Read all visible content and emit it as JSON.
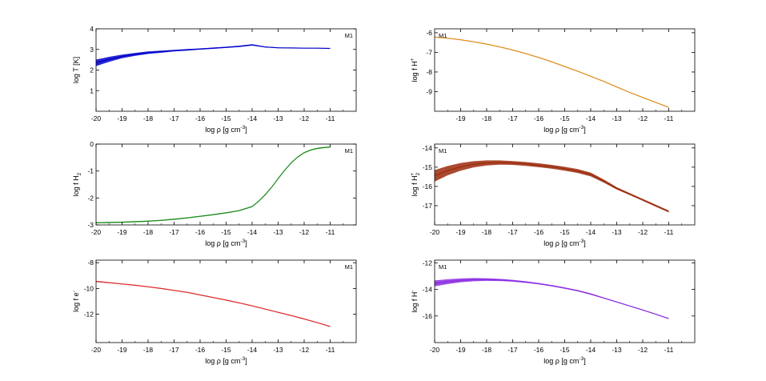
{
  "chart_data": [
    {
      "id": "T",
      "type": "line",
      "ylabel": "log T [K]",
      "ylabel_parts": {
        "base": "log T [K]",
        "sub": "",
        "sup": ""
      },
      "xlabel": "log ρ [g cm",
      "xlabel_sup": "-3",
      "xlabel_close": "]",
      "legend": "M1",
      "legend_position": "top-right",
      "xlim": [
        -20,
        -10
      ],
      "ylim": [
        0,
        4
      ],
      "xticks": [
        -20,
        -19,
        -18,
        -17,
        -16,
        -15,
        -14,
        -13,
        -12,
        -11
      ],
      "yticks": [
        1,
        2,
        3,
        4
      ],
      "color": "#0000cc",
      "x": [
        -20,
        -19.5,
        -19,
        -18.5,
        -18,
        -17.5,
        -17,
        -16.5,
        -16,
        -15.5,
        -15,
        -14.5,
        -14,
        -13.5,
        -13,
        -12.5,
        -12,
        -11.5,
        -11
      ],
      "y": [
        2.35,
        2.52,
        2.66,
        2.76,
        2.84,
        2.89,
        2.94,
        2.98,
        3.02,
        3.06,
        3.1,
        3.15,
        3.22,
        3.12,
        3.08,
        3.07,
        3.06,
        3.06,
        3.05
      ],
      "spread": [
        0.16,
        0.12,
        0.09,
        0.07,
        0.06,
        0.05,
        0.04,
        0.04,
        0.03,
        0.03,
        0.03,
        0.03,
        0.03,
        0.02,
        0.02,
        0.01,
        0.01,
        0.01,
        0.01
      ]
    },
    {
      "id": "Hplus",
      "type": "line",
      "ylabel": "log f H",
      "ylabel_parts": {
        "base": "log f H",
        "sub": "",
        "sup": "+"
      },
      "xlabel": "log ρ [g cm",
      "xlabel_sup": "-3",
      "xlabel_close": "]",
      "legend": "M1",
      "legend_position": "top-left",
      "xlim": [
        -20,
        -10
      ],
      "ylim": [
        -10,
        -5.8
      ],
      "xticks": [
        -19,
        -18,
        -17,
        -16,
        -15,
        -14,
        -13,
        -12,
        -11
      ],
      "yticks": [
        -6,
        -7,
        -8,
        -9
      ],
      "color": "#dd8c1a",
      "x": [
        -20,
        -19.5,
        -19,
        -18.5,
        -18,
        -17.5,
        -17,
        -16.5,
        -16,
        -15.5,
        -15,
        -14.5,
        -14,
        -13.5,
        -13,
        -12.5,
        -12,
        -11.5,
        -11
      ],
      "y": [
        -6.22,
        -6.28,
        -6.36,
        -6.46,
        -6.58,
        -6.72,
        -6.88,
        -7.06,
        -7.26,
        -7.48,
        -7.72,
        -7.96,
        -8.22,
        -8.48,
        -8.76,
        -9.04,
        -9.3,
        -9.55,
        -9.8
      ],
      "spread": [
        0.02,
        0.02,
        0.02,
        0.02,
        0.02,
        0.02,
        0.02,
        0.02,
        0.02,
        0.02,
        0.02,
        0.02,
        0.02,
        0.02,
        0.02,
        0.02,
        0.02,
        0.02,
        0.02
      ]
    },
    {
      "id": "H2",
      "type": "line",
      "ylabel": "log f H",
      "ylabel_parts": {
        "base": "log f H",
        "sub": "2",
        "sup": ""
      },
      "xlabel": "log ρ [g cm",
      "xlabel_sup": "-3",
      "xlabel_close": "]",
      "legend": "M1",
      "legend_position": "top-right",
      "xlim": [
        -20,
        -10
      ],
      "ylim": [
        -3,
        0
      ],
      "xticks": [
        -20,
        -19,
        -18,
        -17,
        -16,
        -15,
        -14,
        -13,
        -12,
        -11
      ],
      "yticks": [
        0,
        -1,
        -2,
        -3
      ],
      "color": "#1e8c1e",
      "x": [
        -20,
        -19.5,
        -19,
        -18.5,
        -18,
        -17.5,
        -17,
        -16.5,
        -16,
        -15.5,
        -15,
        -14.5,
        -14,
        -13.75,
        -13.5,
        -13.25,
        -13,
        -12.75,
        -12.5,
        -12.25,
        -12,
        -11.75,
        -11.5,
        -11.25,
        -11
      ],
      "y": [
        -2.92,
        -2.91,
        -2.9,
        -2.88,
        -2.86,
        -2.83,
        -2.79,
        -2.74,
        -2.68,
        -2.62,
        -2.55,
        -2.47,
        -2.32,
        -2.12,
        -1.88,
        -1.6,
        -1.28,
        -0.97,
        -0.7,
        -0.48,
        -0.32,
        -0.22,
        -0.16,
        -0.13,
        -0.11
      ],
      "spread": [
        0.02,
        0.02,
        0.02,
        0.02,
        0.02,
        0.02,
        0.02,
        0.02,
        0.02,
        0.02,
        0.02,
        0.02,
        0.02,
        0.02,
        0.02,
        0.02,
        0.02,
        0.02,
        0.02,
        0.02,
        0.02,
        0.02,
        0.02,
        0.02,
        0.02
      ]
    },
    {
      "id": "H2plus",
      "type": "line",
      "ylabel": "log f H",
      "ylabel_parts": {
        "base": "log f H",
        "sub": "2",
        "sup": "+"
      },
      "xlabel": "log ρ [g cm",
      "xlabel_sup": "-3",
      "xlabel_close": "]",
      "legend": "M1",
      "legend_position": "top-left",
      "xlim": [
        -20,
        -10
      ],
      "ylim": [
        -18,
        -13.8
      ],
      "xticks": [
        -20,
        -19,
        -18,
        -17,
        -16,
        -15,
        -14,
        -13,
        -12,
        -11
      ],
      "yticks": [
        -14,
        -15,
        -16,
        -17
      ],
      "color": "#9b2a0c",
      "x": [
        -20,
        -19.5,
        -19,
        -18.5,
        -18,
        -17.5,
        -17,
        -16.5,
        -16,
        -15.5,
        -15,
        -14.5,
        -14,
        -13.5,
        -13,
        -12.5,
        -12,
        -11.5,
        -11
      ],
      "y": [
        -15.45,
        -15.18,
        -14.98,
        -14.85,
        -14.78,
        -14.76,
        -14.78,
        -14.83,
        -14.9,
        -14.98,
        -15.08,
        -15.2,
        -15.38,
        -15.72,
        -16.1,
        -16.4,
        -16.7,
        -17.0,
        -17.3
      ],
      "spread": [
        0.3,
        0.24,
        0.2,
        0.16,
        0.13,
        0.11,
        0.1,
        0.1,
        0.1,
        0.1,
        0.1,
        0.1,
        0.1,
        0.08,
        0.06,
        0.05,
        0.05,
        0.05,
        0.05
      ]
    },
    {
      "id": "e",
      "type": "line",
      "ylabel": "log f e",
      "ylabel_parts": {
        "base": "log f e",
        "sub": "",
        "sup": "-"
      },
      "xlabel": "log ρ [g cm",
      "xlabel_sup": "-3",
      "xlabel_close": "]",
      "legend": "M1",
      "legend_position": "top-right",
      "xlim": [
        -20,
        -10
      ],
      "ylim": [
        -14.2,
        -7.8
      ],
      "xticks": [
        -20,
        -19,
        -18,
        -17,
        -16,
        -15,
        -14,
        -13,
        -12,
        -11
      ],
      "yticks": [
        -8,
        -10,
        -12
      ],
      "color": "#dd2a2a",
      "x": [
        -20,
        -19.5,
        -19,
        -18.5,
        -18,
        -17.5,
        -17,
        -16.5,
        -16,
        -15.5,
        -15,
        -14.5,
        -14,
        -13.5,
        -13,
        -12.5,
        -12,
        -11.5,
        -11
      ],
      "y": [
        -9.45,
        -9.55,
        -9.65,
        -9.75,
        -9.87,
        -10.0,
        -10.15,
        -10.3,
        -10.5,
        -10.7,
        -10.9,
        -11.12,
        -11.35,
        -11.6,
        -11.85,
        -12.1,
        -12.37,
        -12.65,
        -12.95
      ],
      "spread": [
        0.04,
        0.04,
        0.03,
        0.03,
        0.03,
        0.03,
        0.03,
        0.03,
        0.03,
        0.03,
        0.03,
        0.03,
        0.03,
        0.03,
        0.03,
        0.03,
        0.03,
        0.03,
        0.03
      ]
    },
    {
      "id": "Hminus",
      "type": "line",
      "ylabel": "log f H",
      "ylabel_parts": {
        "base": "log f H",
        "sub": "",
        "sup": "-"
      },
      "xlabel": "log ρ [g cm",
      "xlabel_sup": "-3",
      "xlabel_close": "]",
      "legend": "M1",
      "legend_position": "top-left",
      "xlim": [
        -20,
        -10
      ],
      "ylim": [
        -18,
        -11.8
      ],
      "xticks": [
        -20,
        -19,
        -18,
        -17,
        -16,
        -15,
        -14,
        -13,
        -12,
        -11
      ],
      "yticks": [
        -12,
        -14,
        -16
      ],
      "color": "#8a2be2",
      "x": [
        -20,
        -19.5,
        -19,
        -18.5,
        -18,
        -17.5,
        -17,
        -16.5,
        -16,
        -15.5,
        -15,
        -14.5,
        -14,
        -13.5,
        -13,
        -12.5,
        -12,
        -11.5,
        -11
      ],
      "y": [
        -13.55,
        -13.42,
        -13.32,
        -13.27,
        -13.26,
        -13.29,
        -13.35,
        -13.45,
        -13.57,
        -13.72,
        -13.9,
        -14.1,
        -14.35,
        -14.65,
        -14.95,
        -15.25,
        -15.55,
        -15.87,
        -16.2
      ],
      "spread": [
        0.22,
        0.18,
        0.14,
        0.12,
        0.1,
        0.08,
        0.07,
        0.06,
        0.05,
        0.05,
        0.05,
        0.05,
        0.05,
        0.04,
        0.03,
        0.03,
        0.03,
        0.03,
        0.03
      ]
    }
  ]
}
